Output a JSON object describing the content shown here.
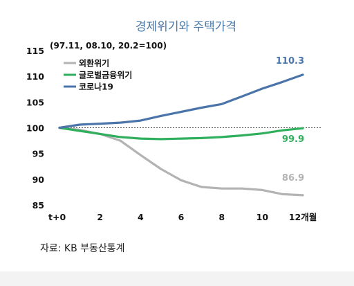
{
  "chart_data": {
    "type": "line",
    "title": "경제위기와 주택가격",
    "subtitle": "(97.11, 08.10, 20.2=100)",
    "x": [
      0,
      1,
      2,
      3,
      4,
      5,
      6,
      7,
      8,
      9,
      10,
      11,
      12
    ],
    "x_ticks": [
      0,
      2,
      4,
      6,
      8,
      10,
      12
    ],
    "x_tick_labels": [
      "t+0",
      "2",
      "4",
      "6",
      "8",
      "10",
      "12개월"
    ],
    "xlim": [
      0,
      12
    ],
    "ylim": [
      85,
      115
    ],
    "y_ticks": [
      85,
      90,
      95,
      100,
      105,
      110,
      115
    ],
    "reference_line": 100,
    "legend_position": "top-left",
    "series": [
      {
        "name": "외환위기",
        "color": "#b3b3b3",
        "values": [
          100,
          99.6,
          98.8,
          97.5,
          94.7,
          92,
          89.8,
          88.5,
          88.2,
          88.2,
          87.9,
          87.1,
          86.9
        ],
        "end_label": "86.9"
      },
      {
        "name": "글로벌금융위기",
        "color": "#2fae5c",
        "values": [
          100,
          99.4,
          98.8,
          98.2,
          97.9,
          97.8,
          97.9,
          98.0,
          98.2,
          98.5,
          98.9,
          99.5,
          99.9
        ],
        "end_label": "99.9"
      },
      {
        "name": "코로나19",
        "color": "#4b74aa",
        "values": [
          100,
          100.6,
          100.8,
          101.0,
          101.4,
          102.3,
          103.1,
          103.9,
          104.6,
          106.1,
          107.6,
          108.9,
          110.3
        ],
        "end_label": "110.3"
      }
    ]
  },
  "source": "자료: KB 부동산통계"
}
